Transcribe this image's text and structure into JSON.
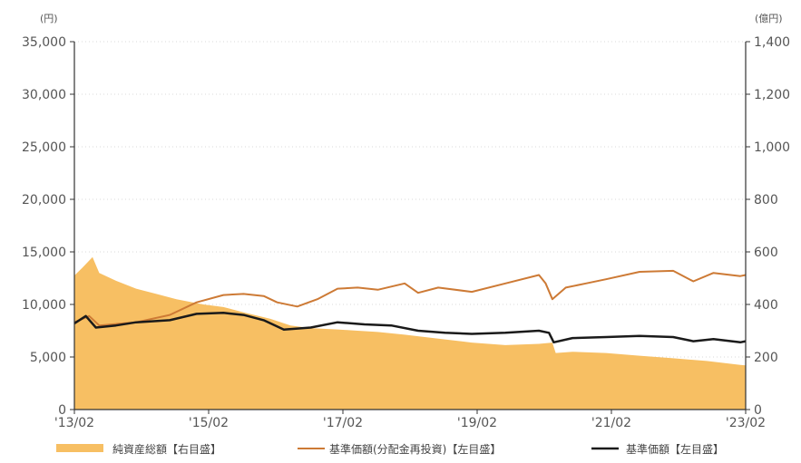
{
  "chart_data": {
    "type": "area+line",
    "title": "",
    "left_axis": {
      "unit_label": "(円)",
      "ylim": [
        0,
        35000
      ],
      "ticks": [
        "0",
        "5,000",
        "10,000",
        "15,000",
        "20,000",
        "25,000",
        "30,000",
        "35,000"
      ]
    },
    "right_axis": {
      "unit_label": "(億円)",
      "ylim": [
        0,
        1400
      ],
      "ticks": [
        "0",
        "200",
        "400",
        "600",
        "800",
        "1,000",
        "1,200",
        "1,400"
      ]
    },
    "x_axis": {
      "ticks": [
        "'13/02",
        "'15/02",
        "'17/02",
        "'19/02",
        "'21/02",
        "'23/02"
      ],
      "tick_positions": [
        2013.08,
        2015.08,
        2017.08,
        2019.08,
        2021.08,
        2023.08
      ],
      "xlim": [
        2013.08,
        2023.08
      ]
    },
    "grid": "horizontal dotted",
    "legend_position": "bottom",
    "series": [
      {
        "name": "純資産総額【右目盛】",
        "type": "area",
        "axis": "right",
        "color": "#f7bf63",
        "points": [
          [
            2013.08,
            510
          ],
          [
            2013.2,
            540
          ],
          [
            2013.35,
            580
          ],
          [
            2013.45,
            520
          ],
          [
            2013.7,
            490
          ],
          [
            2014.0,
            460
          ],
          [
            2014.3,
            440
          ],
          [
            2014.6,
            420
          ],
          [
            2015.0,
            400
          ],
          [
            2015.3,
            390
          ],
          [
            2015.6,
            370
          ],
          [
            2016.0,
            345
          ],
          [
            2016.3,
            320
          ],
          [
            2016.6,
            310
          ],
          [
            2017.0,
            305
          ],
          [
            2017.3,
            300
          ],
          [
            2017.6,
            295
          ],
          [
            2018.0,
            285
          ],
          [
            2018.5,
            270
          ],
          [
            2019.0,
            255
          ],
          [
            2019.5,
            245
          ],
          [
            2020.0,
            250
          ],
          [
            2020.2,
            255
          ],
          [
            2020.25,
            215
          ],
          [
            2020.5,
            220
          ],
          [
            2021.0,
            215
          ],
          [
            2021.5,
            205
          ],
          [
            2022.0,
            195
          ],
          [
            2022.5,
            185
          ],
          [
            2023.0,
            170
          ],
          [
            2023.08,
            168
          ]
        ]
      },
      {
        "name": "基準価額(分配金再投資)【左目盛】",
        "type": "line",
        "axis": "left",
        "color": "#cd7a35",
        "points": [
          [
            2013.08,
            8300
          ],
          [
            2013.3,
            8900
          ],
          [
            2013.45,
            8000
          ],
          [
            2014.0,
            8300
          ],
          [
            2014.5,
            9000
          ],
          [
            2014.9,
            10200
          ],
          [
            2015.3,
            10900
          ],
          [
            2015.6,
            11000
          ],
          [
            2015.9,
            10800
          ],
          [
            2016.1,
            10200
          ],
          [
            2016.4,
            9800
          ],
          [
            2016.7,
            10500
          ],
          [
            2017.0,
            11500
          ],
          [
            2017.3,
            11600
          ],
          [
            2017.6,
            11400
          ],
          [
            2018.0,
            12000
          ],
          [
            2018.2,
            11100
          ],
          [
            2018.5,
            11600
          ],
          [
            2019.0,
            11200
          ],
          [
            2019.5,
            12000
          ],
          [
            2020.0,
            12800
          ],
          [
            2020.1,
            12000
          ],
          [
            2020.2,
            10500
          ],
          [
            2020.4,
            11600
          ],
          [
            2020.7,
            12000
          ],
          [
            2021.0,
            12400
          ],
          [
            2021.5,
            13100
          ],
          [
            2022.0,
            13200
          ],
          [
            2022.3,
            12200
          ],
          [
            2022.6,
            13000
          ],
          [
            2023.0,
            12700
          ],
          [
            2023.08,
            12800
          ]
        ]
      },
      {
        "name": "基準価額【左目盛】",
        "type": "line",
        "axis": "left",
        "color": "#1a1a1a",
        "points": [
          [
            2013.08,
            8200
          ],
          [
            2013.25,
            8900
          ],
          [
            2013.4,
            7800
          ],
          [
            2013.7,
            8000
          ],
          [
            2014.0,
            8300
          ],
          [
            2014.5,
            8500
          ],
          [
            2014.9,
            9100
          ],
          [
            2015.3,
            9200
          ],
          [
            2015.6,
            9000
          ],
          [
            2015.9,
            8500
          ],
          [
            2016.2,
            7600
          ],
          [
            2016.6,
            7800
          ],
          [
            2017.0,
            8300
          ],
          [
            2017.4,
            8100
          ],
          [
            2017.8,
            8000
          ],
          [
            2018.2,
            7500
          ],
          [
            2018.6,
            7300
          ],
          [
            2019.0,
            7200
          ],
          [
            2019.5,
            7300
          ],
          [
            2020.0,
            7500
          ],
          [
            2020.15,
            7300
          ],
          [
            2020.22,
            6400
          ],
          [
            2020.5,
            6800
          ],
          [
            2021.0,
            6900
          ],
          [
            2021.5,
            7000
          ],
          [
            2022.0,
            6900
          ],
          [
            2022.3,
            6500
          ],
          [
            2022.6,
            6700
          ],
          [
            2023.0,
            6400
          ],
          [
            2023.08,
            6500
          ]
        ]
      }
    ]
  }
}
